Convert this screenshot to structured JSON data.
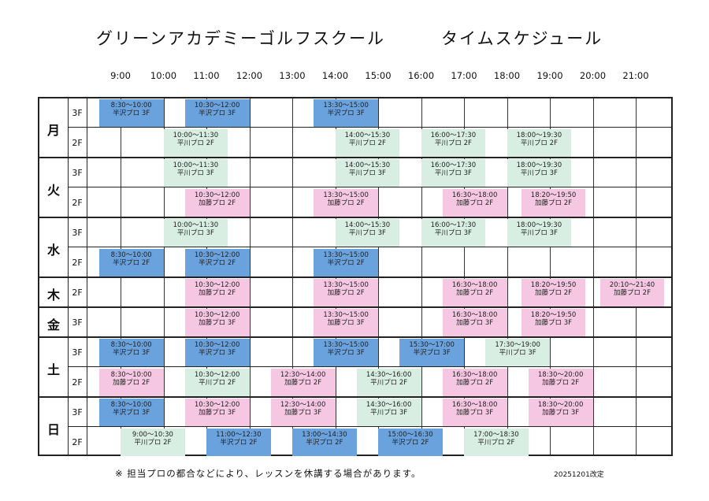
{
  "title": {
    "school": "グリーンアカデミーゴルフスクール",
    "schedule": "タイムスケジュール"
  },
  "hours": [
    "9:00",
    "10:00",
    "11:00",
    "12:00",
    "13:00",
    "14:00",
    "15:00",
    "16:00",
    "17:00",
    "18:00",
    "19:00",
    "20:00",
    "21:00"
  ],
  "days": [
    {
      "label": "月",
      "rows": [
        {
          "floor": "3F",
          "blocks": [
            {
              "time": "8:30～10:00",
              "instructor": "半沢プロ 3F",
              "color": "blue"
            },
            {
              "time": "10:30～12:00",
              "instructor": "半沢プロ 3F",
              "color": "blue"
            },
            {
              "time": "13:30～15:00",
              "instructor": "半沢プロ 3F",
              "color": "blue"
            }
          ]
        },
        {
          "floor": "2F",
          "blocks": [
            {
              "time": "10:00～11:30",
              "instructor": "平川プロ 2F",
              "color": "green"
            },
            {
              "time": "14:00～15:30",
              "instructor": "平川プロ 2F",
              "color": "green"
            },
            {
              "time": "16:00～17:30",
              "instructor": "平川プロ 2F",
              "color": "green"
            },
            {
              "time": "18:00～19:30",
              "instructor": "平川プロ 2F",
              "color": "green"
            }
          ]
        }
      ]
    },
    {
      "label": "火",
      "rows": [
        {
          "floor": "3F",
          "blocks": [
            {
              "time": "10:00～11:30",
              "instructor": "平川プロ 3F",
              "color": "green"
            },
            {
              "time": "14:00～15:30",
              "instructor": "平川プロ 3F",
              "color": "green"
            },
            {
              "time": "16:00～17:30",
              "instructor": "平川プロ 3F",
              "color": "green"
            },
            {
              "time": "18:00～19:30",
              "instructor": "平川プロ 3F",
              "color": "green"
            }
          ]
        },
        {
          "floor": "2F",
          "blocks": [
            {
              "time": "10:30～12:00",
              "instructor": "加藤プロ 2F",
              "color": "pink"
            },
            {
              "time": "13:30～15:00",
              "instructor": "加藤プロ 2F",
              "color": "pink"
            },
            {
              "time": "16:30～18:00",
              "instructor": "加藤プロ 2F",
              "color": "pink"
            },
            {
              "time": "18:20～19:50",
              "instructor": "加藤プロ 2F",
              "color": "pink"
            }
          ]
        }
      ]
    },
    {
      "label": "水",
      "rows": [
        {
          "floor": "3F",
          "blocks": [
            {
              "time": "10:00～11:30",
              "instructor": "平川プロ 3F",
              "color": "green"
            },
            {
              "time": "14:00～15:30",
              "instructor": "平川プロ 3F",
              "color": "green"
            },
            {
              "time": "16:00～17:30",
              "instructor": "平川プロ 3F",
              "color": "green"
            },
            {
              "time": "18:00～19:30",
              "instructor": "平川プロ 3F",
              "color": "green"
            }
          ]
        },
        {
          "floor": "2F",
          "blocks": [
            {
              "time": "8:30～10:00",
              "instructor": "半沢プロ 2F",
              "color": "blue"
            },
            {
              "time": "10:30～12:00",
              "instructor": "半沢プロ 2F",
              "color": "blue"
            },
            {
              "time": "13:30～15:00",
              "instructor": "半沢プロ 2F",
              "color": "blue"
            }
          ]
        }
      ]
    },
    {
      "label": "木",
      "rows": [
        {
          "floor": "2F",
          "blocks": [
            {
              "time": "10:30～12:00",
              "instructor": "加藤プロ 2F",
              "color": "pink"
            },
            {
              "time": "13:30～15:00",
              "instructor": "加藤プロ 2F",
              "color": "pink"
            },
            {
              "time": "16:30～18:00",
              "instructor": "加藤プロ 2F",
              "color": "pink"
            },
            {
              "time": "18:20～19:50",
              "instructor": "加藤プロ 2F",
              "color": "pink"
            },
            {
              "time": "20:10～21:40",
              "instructor": "加藤プロ 2F",
              "color": "pink"
            }
          ]
        }
      ]
    },
    {
      "label": "金",
      "rows": [
        {
          "floor": "3F",
          "blocks": [
            {
              "time": "10:30～12:00",
              "instructor": "加藤プロ 3F",
              "color": "pink"
            },
            {
              "time": "13:30～15:00",
              "instructor": "加藤プロ 3F",
              "color": "pink"
            },
            {
              "time": "16:30～18:00",
              "instructor": "加藤プロ 3F",
              "color": "pink"
            },
            {
              "time": "18:20～19:50",
              "instructor": "加藤プロ 3F",
              "color": "pink"
            }
          ]
        }
      ]
    },
    {
      "label": "土",
      "rows": [
        {
          "floor": "3F",
          "blocks": [
            {
              "time": "8:30～10:00",
              "instructor": "半沢プロ 3F",
              "color": "blue"
            },
            {
              "time": "10:30～12:00",
              "instructor": "半沢プロ 3F",
              "color": "blue"
            },
            {
              "time": "13:30～15:00",
              "instructor": "半沢プロ 3F",
              "color": "blue"
            },
            {
              "time": "15:30～17:00",
              "instructor": "半沢プロ 3F",
              "color": "blue"
            },
            {
              "time": "17:30～19:00",
              "instructor": "平川プロ 3F",
              "color": "green"
            }
          ]
        },
        {
          "floor": "2F",
          "blocks": [
            {
              "time": "8:30～10:00",
              "instructor": "加藤プロ 2F",
              "color": "pink"
            },
            {
              "time": "10:30～12:00",
              "instructor": "平川プロ 2F",
              "color": "green"
            },
            {
              "time": "12:30～14:00",
              "instructor": "加藤プロ 2F",
              "color": "pink"
            },
            {
              "time": "14:30～16:00",
              "instructor": "平川プロ 2F",
              "color": "green"
            },
            {
              "time": "16:30～18:00",
              "instructor": "加藤プロ 2F",
              "color": "pink"
            },
            {
              "time": "18:30～20:00",
              "instructor": "加藤プロ 2F",
              "color": "pink"
            }
          ]
        }
      ]
    },
    {
      "label": "日",
      "rows": [
        {
          "floor": "3F",
          "blocks": [
            {
              "time": "8:30～10:00",
              "instructor": "半沢プロ 3F",
              "color": "blue"
            },
            {
              "time": "10:30～12:00",
              "instructor": "加藤プロ 3F",
              "color": "pink"
            },
            {
              "time": "12:30～14:00",
              "instructor": "加藤プロ 3F",
              "color": "pink"
            },
            {
              "time": "14:30～16:00",
              "instructor": "平川プロ 3F",
              "color": "green"
            },
            {
              "time": "16:30～18:00",
              "instructor": "加藤プロ 3F",
              "color": "pink"
            },
            {
              "time": "18:30～20:00",
              "instructor": "加藤プロ 3F",
              "color": "pink"
            }
          ]
        },
        {
          "floor": "2F",
          "blocks": [
            {
              "time": "9:00～10:30",
              "instructor": "平川プロ 2F",
              "color": "green"
            },
            {
              "time": "11:00～12:30",
              "instructor": "半沢プロ 2F",
              "color": "blue"
            },
            {
              "time": "13:00～14:30",
              "instructor": "半沢プロ 2F",
              "color": "blue"
            },
            {
              "time": "15:00～16:30",
              "instructor": "半沢プロ 2F",
              "color": "blue"
            },
            {
              "time": "17:00～18:30",
              "instructor": "平川プロ 2F",
              "color": "green"
            }
          ]
        }
      ]
    }
  ],
  "colors": {
    "blue": "#6aa2dd",
    "green": "#d8eee3",
    "pink": "#f6c7e2"
  },
  "footer": {
    "note": "※ 担当プロの都合などにより、レッスンを休講する場合があります。",
    "revision": "20251201改定"
  }
}
